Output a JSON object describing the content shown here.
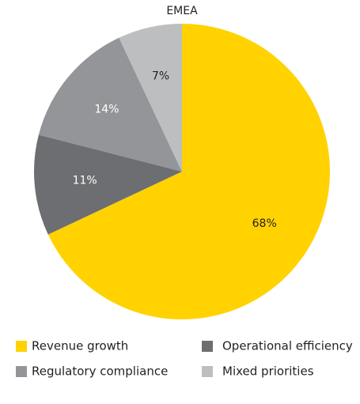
{
  "chart_data": {
    "type": "pie",
    "title": "EMEA",
    "categories": [
      "Revenue growth",
      "Operational efficiency",
      "Regulatory compliance",
      "Mixed priorities"
    ],
    "values": [
      68,
      11,
      14,
      7
    ],
    "value_labels": [
      "68%",
      "11%",
      "14%",
      "7%"
    ],
    "colors": [
      "#ffd200",
      "#6d6e71",
      "#939598",
      "#bcbec0"
    ],
    "legend": "bottom"
  }
}
